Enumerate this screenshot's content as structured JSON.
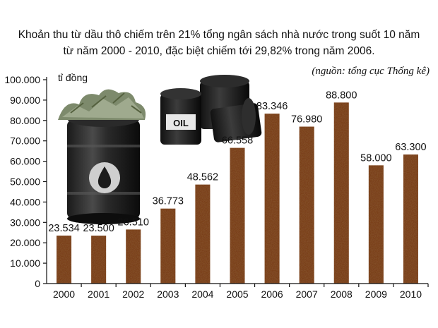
{
  "chart_data": {
    "type": "bar",
    "title": "Khoản thu từ dầu thô chiếm trên 21% tổng ngân sách nhà nước trong suốt 10 năm",
    "subtitle": "từ năm 2000 - 2010, đặc biệt chiếm tới 29,82% trong năm 2006.",
    "source": "(nguồn: tổng cục Thống kê)",
    "ylabel": "tỉ đồng",
    "categories": [
      "2000",
      "2001",
      "2002",
      "2003",
      "2004",
      "2005",
      "2006",
      "2007",
      "2008",
      "2009",
      "2010"
    ],
    "values": [
      23534,
      23500,
      26510,
      36773,
      48562,
      66558,
      83346,
      76980,
      88800,
      58000,
      63300
    ],
    "value_labels": [
      "23.534",
      "23.500",
      "26.510",
      "36.773",
      "48.562",
      "66.558",
      "83.346",
      "76.980",
      "88.800",
      "58.000",
      "63.300"
    ],
    "ylim": [
      0,
      100000
    ],
    "yticks": [
      0,
      10000,
      20000,
      30000,
      40000,
      50000,
      60000,
      70000,
      80000,
      90000,
      100000
    ],
    "ytick_labels": [
      "0",
      "10.000",
      "20.000",
      "30.000",
      "40.000",
      "50.000",
      "60.000",
      "70.000",
      "80.000",
      "90.000",
      "100.000"
    ],
    "grid": false,
    "legend": "none",
    "bar_color": "#7a3f1c"
  },
  "decorations": {
    "barrel_money_icon": "oil-barrel-with-money-icon",
    "oil_barrels_icon": "oil-barrels-icon",
    "oil_label": "OIL"
  }
}
